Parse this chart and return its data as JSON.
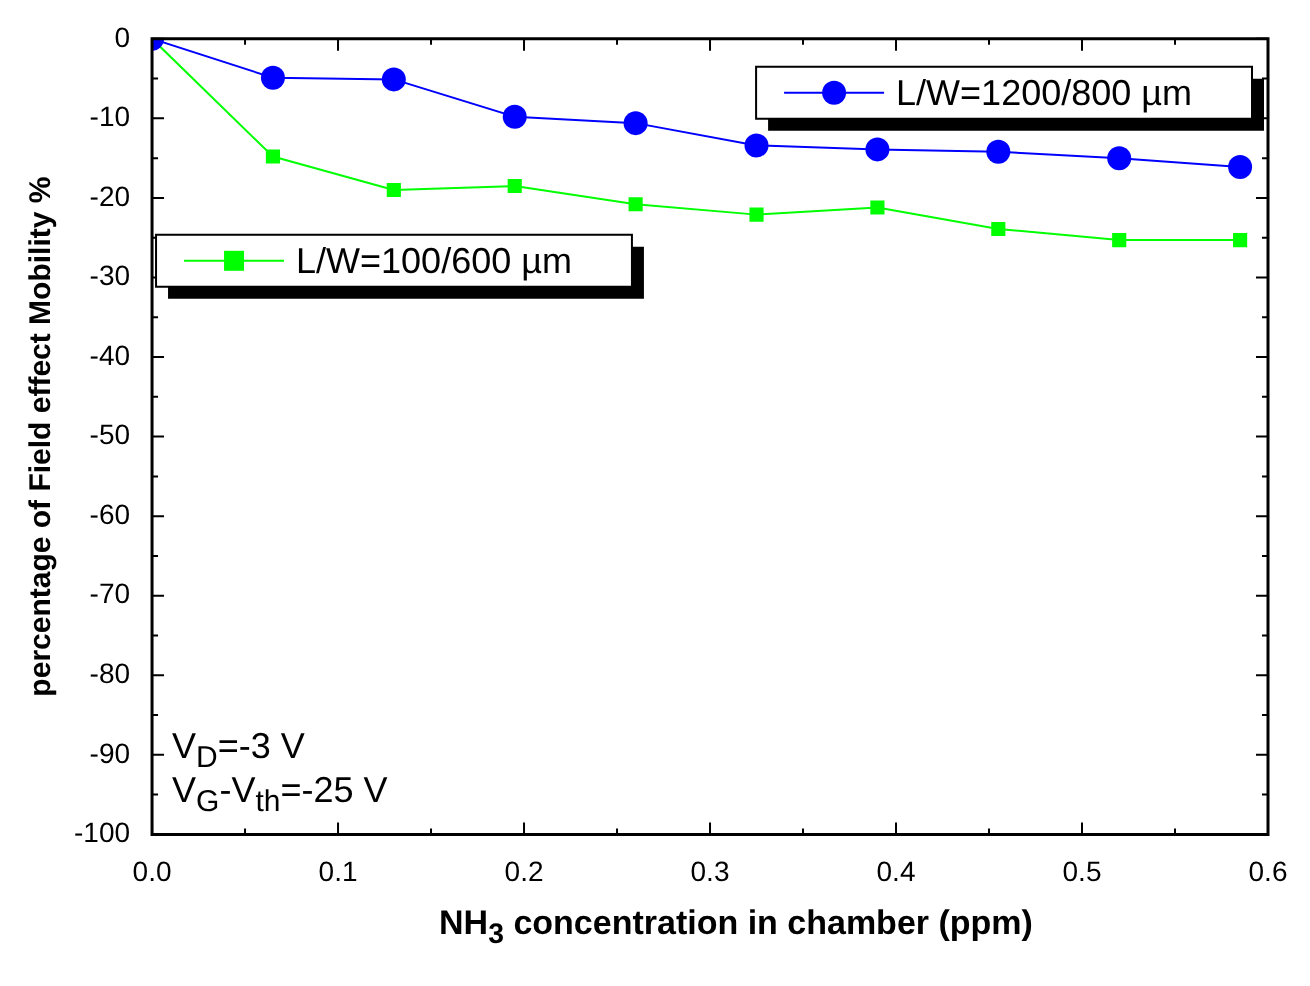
{
  "chart_data": {
    "type": "line",
    "xlabel": "NH$_{3}$ concentration in chamber (ppm)",
    "ylabel": "percentage of Field effect Mobility %",
    "x": [
      0,
      0.065,
      0.13,
      0.195,
      0.26,
      0.325,
      0.39,
      0.455,
      0.52,
      0.585
    ],
    "series": [
      {
        "name": "L/W=1200/800 µm",
        "color": "#0000ff",
        "marker": "circle",
        "values": [
          0,
          -4.9,
          -5.1,
          -9.8,
          -10.6,
          -13.4,
          -13.9,
          -14.2,
          -15,
          -16.1
        ]
      },
      {
        "name": "L/W=100/600 µm",
        "color": "#00ff00",
        "marker": "square",
        "values": [
          0,
          -14.8,
          -19,
          -18.5,
          -20.8,
          -22.1,
          -21.2,
          -23.9,
          -25.3,
          -25.3
        ]
      }
    ],
    "xlim": [
      0,
      0.6
    ],
    "xticks": [
      {
        "value": 0,
        "label": "0.0"
      },
      {
        "value": 0.05,
        "label": null
      },
      {
        "value": 0.1,
        "label": "0.1"
      },
      {
        "value": 0.15,
        "label": null
      },
      {
        "value": 0.2,
        "label": "0.2"
      },
      {
        "value": 0.25,
        "label": null
      },
      {
        "value": 0.3,
        "label": "0.3"
      },
      {
        "value": 0.35,
        "label": null
      },
      {
        "value": 0.4,
        "label": "0.4"
      },
      {
        "value": 0.45,
        "label": null
      },
      {
        "value": 0.5,
        "label": "0.5"
      },
      {
        "value": 0.55,
        "label": null
      },
      {
        "value": 0.6,
        "label": "0.6"
      }
    ],
    "ylim": [
      -100,
      0
    ],
    "yticks": [
      0,
      {
        "value": -5,
        "label": null
      },
      -10,
      {
        "value": -15,
        "label": null
      },
      -20,
      {
        "value": -25,
        "label": null
      },
      -30,
      {
        "value": -35,
        "label": null
      },
      -40,
      {
        "value": -45,
        "label": null
      },
      -50,
      {
        "value": -55,
        "label": null
      },
      -60,
      {
        "value": -65,
        "label": null
      },
      -70,
      {
        "value": -75,
        "label": null
      },
      -80,
      {
        "value": -85,
        "label": null
      },
      -90,
      {
        "value": -95,
        "label": null
      },
      -100
    ],
    "annotations": [
      "V$_{D}$=-3 V",
      "V$_{G}$-V$_{th}$=-25 V"
    ],
    "legend": "top right",
    "grid": false,
    "line_style": "solid"
  }
}
